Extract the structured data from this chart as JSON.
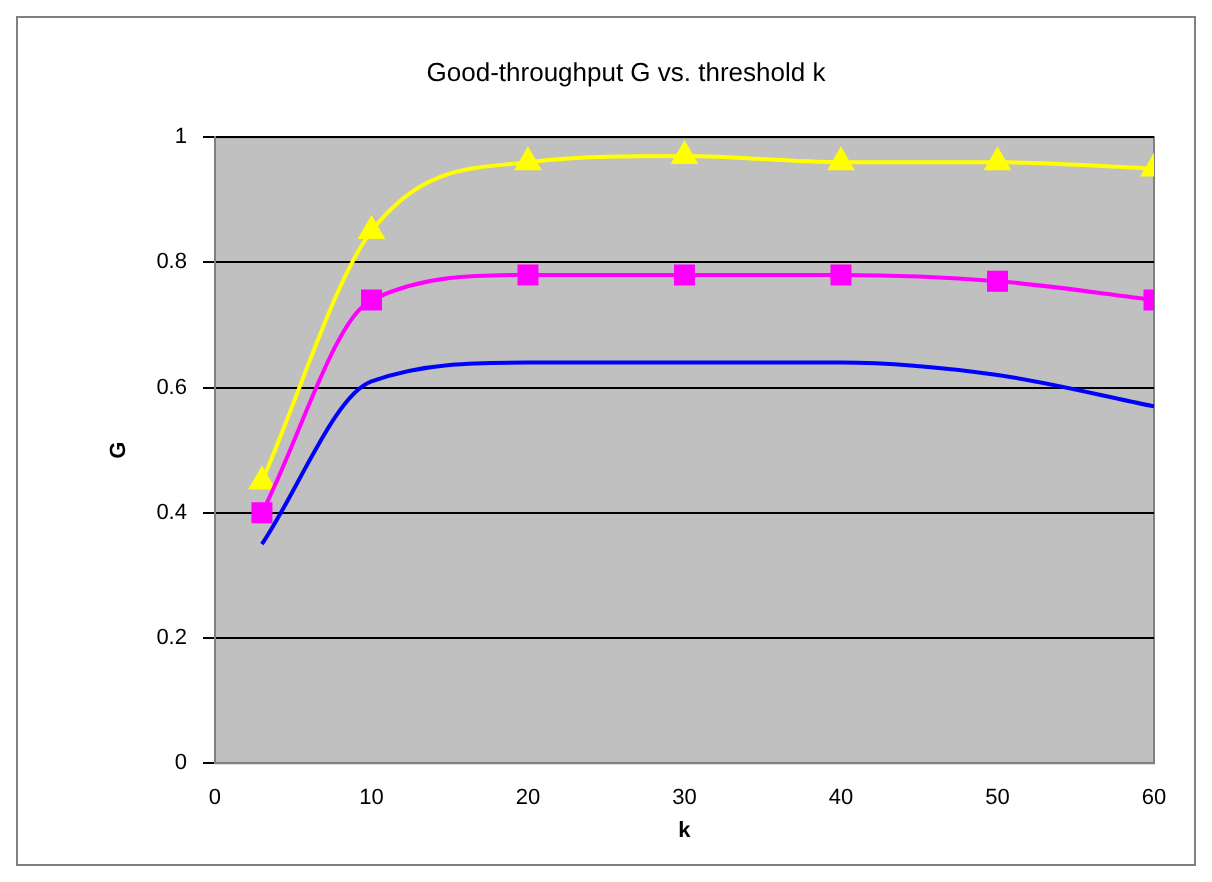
{
  "chart_data": {
    "type": "line",
    "title": "Good-throughput G vs. threshold k",
    "xlabel": "k",
    "ylabel": "G",
    "x": [
      3,
      10,
      20,
      30,
      40,
      50,
      60
    ],
    "series": [
      {
        "color": "#0000ff",
        "marker": "none",
        "values": [
          0.35,
          0.61,
          0.64,
          0.64,
          0.64,
          0.62,
          0.57
        ]
      },
      {
        "color": "#ff00ff",
        "marker": "square",
        "values": [
          0.4,
          0.74,
          0.78,
          0.78,
          0.78,
          0.77,
          0.74
        ]
      },
      {
        "color": "#ffff00",
        "marker": "triangle",
        "values": [
          0.45,
          0.85,
          0.96,
          0.97,
          0.96,
          0.96,
          0.95
        ]
      }
    ],
    "xlim": [
      0,
      60
    ],
    "xticks": [
      0,
      10,
      20,
      30,
      40,
      50,
      60
    ],
    "ylim": [
      0,
      1
    ],
    "yticks": [
      0,
      0.2,
      0.4,
      0.6,
      0.8,
      1
    ],
    "grid": "y",
    "legend": false
  }
}
